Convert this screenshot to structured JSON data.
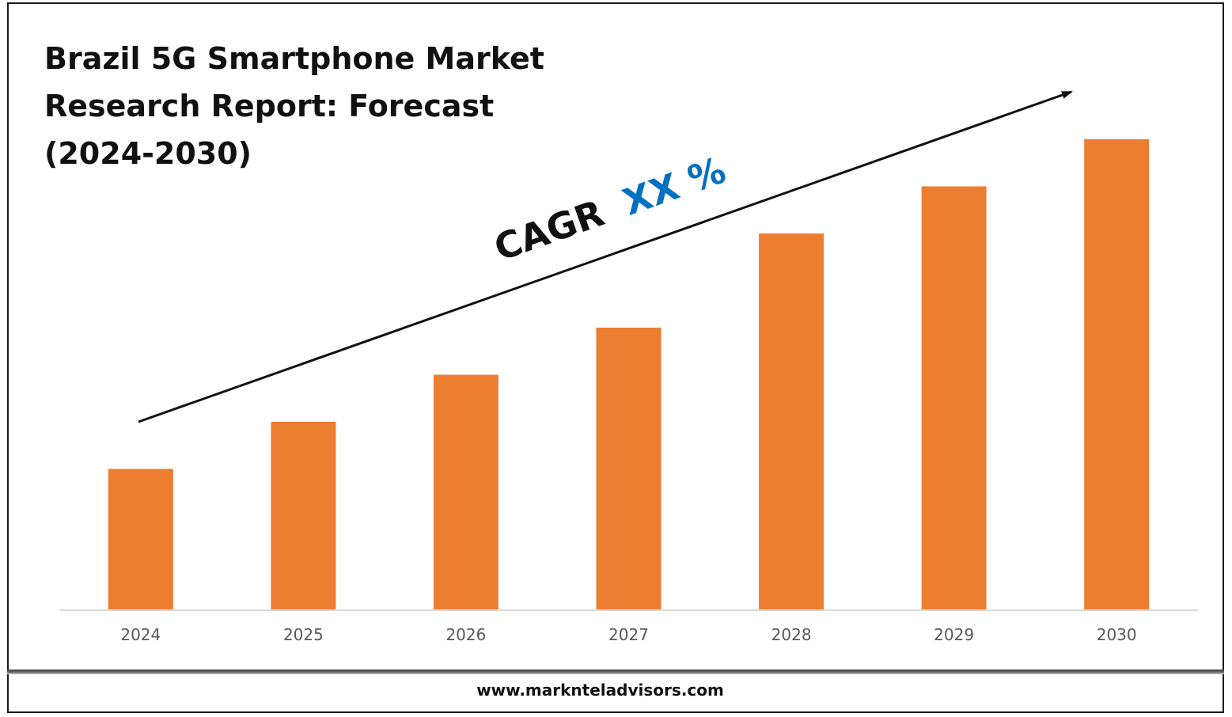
{
  "chart_data": {
    "type": "bar",
    "title": "Brazil 5G Smartphone Market\nResearch Report: Forecast\n(2024-2030)",
    "categories": [
      "2024",
      "2025",
      "2026",
      "2027",
      "2028",
      "2029",
      "2030"
    ],
    "values": [
      30,
      40,
      50,
      60,
      80,
      90,
      100
    ],
    "ylim": [
      0,
      100
    ],
    "xlabel": "",
    "ylabel": "",
    "grid": false,
    "legend": "none",
    "bar_color": "#ED7D31",
    "annotation": {
      "prefix": "CAGR",
      "value": "XX %",
      "value_color": "#0070C0",
      "text_color": "#111111"
    }
  },
  "footer": {
    "url": "www.marknteladvisors.com"
  }
}
